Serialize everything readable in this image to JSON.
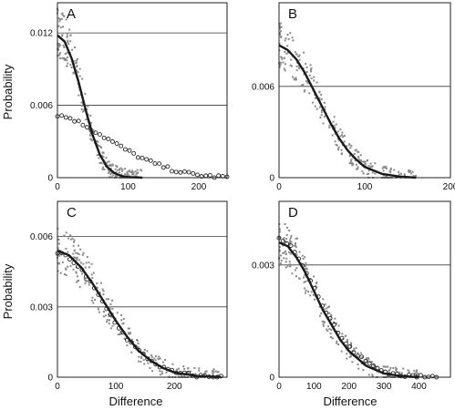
{
  "figure": {
    "ylabel": "Probability",
    "xlabel": "Difference"
  },
  "colors": {
    "background": "#ffffff",
    "frame": "#222222",
    "gridline": "#3a3a3a",
    "scatter": "#8a8a8a",
    "fit_line": "#1a1a1a",
    "circle_markers": "#2a2a2a"
  },
  "chart_data": [
    {
      "panel": "A",
      "type": "scatter",
      "title": "",
      "xlabel": "",
      "ylabel": "Probability",
      "xlim": [
        0,
        240
      ],
      "ylim": [
        0,
        0.0145
      ],
      "yticks": [
        0,
        0.006,
        0.012
      ],
      "ytick_labels": [
        "0",
        "0.006",
        "0.012"
      ],
      "xticks": [
        0,
        100,
        200
      ],
      "xtick_labels": [
        "0",
        "100",
        "200"
      ],
      "grid": "horizontal",
      "series": [
        {
          "style": "scatter",
          "x": [
            0,
            10,
            20,
            30,
            40,
            50,
            60,
            70,
            80,
            90,
            100,
            120
          ],
          "y": [
            0.0122,
            0.0116,
            0.0102,
            0.0082,
            0.0058,
            0.0036,
            0.0019,
            0.0009,
            0.0004,
            0.00015,
            5e-05,
            0.0
          ]
        },
        {
          "style": "line",
          "x": [
            0,
            10,
            20,
            30,
            40,
            50,
            60,
            70,
            80,
            90,
            100,
            120
          ],
          "y": [
            0.0118,
            0.0113,
            0.0099,
            0.0079,
            0.0056,
            0.0035,
            0.0019,
            0.0009,
            0.0004,
            0.00015,
            5e-05,
            0.0
          ]
        },
        {
          "style": "circles",
          "x": [
            0,
            20,
            40,
            60,
            80,
            100,
            120,
            140,
            160,
            180,
            200,
            220,
            240
          ],
          "y": [
            0.0052,
            0.0049,
            0.0043,
            0.0036,
            0.0029,
            0.0022,
            0.0016,
            0.0011,
            0.0007,
            0.0004,
            0.0002,
            0.0001,
            5e-05
          ]
        }
      ]
    },
    {
      "panel": "B",
      "type": "scatter",
      "title": "",
      "xlabel": "",
      "ylabel": "",
      "xlim": [
        0,
        200
      ],
      "ylim": [
        0,
        0.0115
      ],
      "yticks": [
        0,
        0.006
      ],
      "ytick_labels": [
        "0",
        "0.006"
      ],
      "xticks": [
        0,
        100,
        200
      ],
      "xtick_labels": [
        "0",
        "100",
        "200"
      ],
      "grid": "horizontal",
      "series": [
        {
          "style": "scatter",
          "x": [
            0,
            10,
            20,
            30,
            40,
            50,
            60,
            70,
            80,
            90,
            100,
            120,
            140,
            160
          ],
          "y": [
            0.0087,
            0.0084,
            0.0078,
            0.0069,
            0.0058,
            0.0047,
            0.0036,
            0.0026,
            0.0018,
            0.0012,
            0.0007,
            0.00025,
            8e-05,
            0.0
          ]
        },
        {
          "style": "line",
          "x": [
            0,
            10,
            20,
            30,
            40,
            50,
            60,
            70,
            80,
            90,
            100,
            120,
            140,
            160
          ],
          "y": [
            0.0087,
            0.0084,
            0.0078,
            0.0069,
            0.0058,
            0.0047,
            0.0036,
            0.0026,
            0.0018,
            0.0012,
            0.0007,
            0.00025,
            8e-05,
            0.0
          ]
        }
      ]
    },
    {
      "panel": "C",
      "type": "scatter",
      "title": "",
      "xlabel": "Difference",
      "ylabel": "Probability",
      "xlim": [
        0,
        290
      ],
      "ylim": [
        0,
        0.0075
      ],
      "yticks": [
        0,
        0.003,
        0.006
      ],
      "ytick_labels": [
        "0",
        "0.003",
        "0.006"
      ],
      "xticks": [
        0,
        100,
        200
      ],
      "xtick_labels": [
        "0",
        "100",
        "200"
      ],
      "grid": "horizontal",
      "series": [
        {
          "style": "scatter",
          "x": [
            0,
            20,
            40,
            60,
            80,
            100,
            120,
            140,
            160,
            180,
            200,
            240,
            280
          ],
          "y": [
            0.0054,
            0.0052,
            0.0047,
            0.004,
            0.0032,
            0.0024,
            0.0017,
            0.0011,
            0.0007,
            0.0004,
            0.0002,
            5e-05,
            0.0
          ]
        },
        {
          "style": "line",
          "x": [
            0,
            20,
            40,
            60,
            80,
            100,
            120,
            140,
            160,
            180,
            200,
            240,
            280
          ],
          "y": [
            0.0054,
            0.0052,
            0.0047,
            0.004,
            0.0032,
            0.0024,
            0.0017,
            0.0011,
            0.0007,
            0.0004,
            0.0002,
            5e-05,
            0.0
          ]
        },
        {
          "style": "circles",
          "x": [
            0,
            20,
            40,
            60,
            80,
            100,
            120,
            140,
            160,
            180,
            200,
            240,
            280
          ],
          "y": [
            0.0053,
            0.0051,
            0.0046,
            0.0039,
            0.0031,
            0.0023,
            0.0016,
            0.0011,
            0.0007,
            0.0004,
            0.0002,
            5e-05,
            0.0
          ]
        }
      ]
    },
    {
      "panel": "D",
      "type": "scatter",
      "title": "",
      "xlabel": "Difference",
      "ylabel": "",
      "xlim": [
        0,
        490
      ],
      "ylim": [
        0,
        0.0047
      ],
      "yticks": [
        0,
        0.003
      ],
      "ytick_labels": [
        "0",
        "0.003"
      ],
      "xticks": [
        0,
        100,
        200,
        300,
        400
      ],
      "xtick_labels": [
        "0",
        "100",
        "200",
        "300",
        "400"
      ],
      "grid": "horizontal",
      "series": [
        {
          "style": "scatter",
          "x": [
            0,
            25,
            50,
            75,
            100,
            125,
            150,
            175,
            200,
            250,
            300,
            350,
            400
          ],
          "y": [
            0.0036,
            0.0035,
            0.0032,
            0.0028,
            0.0023,
            0.0018,
            0.0014,
            0.001,
            0.0007,
            0.0003,
            0.0001,
            3e-05,
            0.0
          ]
        },
        {
          "style": "line",
          "x": [
            0,
            25,
            50,
            75,
            100,
            125,
            150,
            175,
            200,
            250,
            300,
            350,
            400
          ],
          "y": [
            0.0036,
            0.0035,
            0.0032,
            0.0028,
            0.0023,
            0.0018,
            0.0014,
            0.001,
            0.0007,
            0.0003,
            0.0001,
            3e-05,
            0.0
          ]
        },
        {
          "style": "circles",
          "x": [
            0,
            25,
            50,
            75,
            100,
            125,
            150,
            175,
            200,
            250,
            300,
            350,
            400,
            450
          ],
          "y": [
            0.0037,
            0.0036,
            0.0033,
            0.0029,
            0.0024,
            0.0019,
            0.0015,
            0.0011,
            0.0008,
            0.0004,
            0.00015,
            5e-05,
            1e-05,
            0.0
          ]
        }
      ]
    }
  ]
}
